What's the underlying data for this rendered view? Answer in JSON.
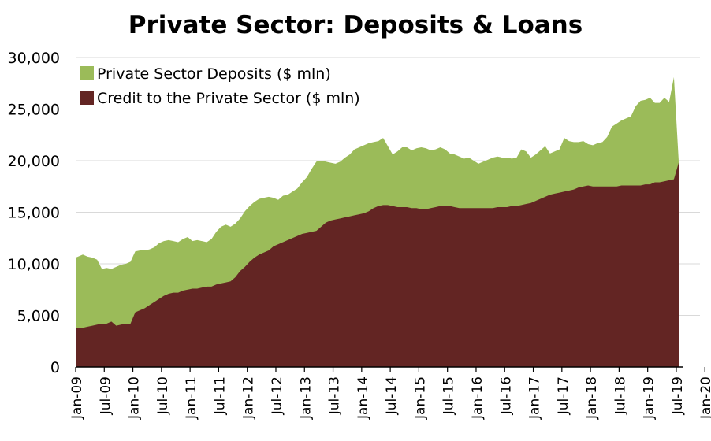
{
  "chart_data": {
    "type": "area",
    "title": "Private Sector: Deposits & Loans",
    "xlabel": "",
    "ylabel": "",
    "ylim": [
      0,
      30000
    ],
    "yticks": [
      "0",
      "5,000",
      "10,000",
      "15,000",
      "20,000",
      "25,000",
      "30,000"
    ],
    "ytick_values": [
      0,
      5000,
      10000,
      15000,
      20000,
      25000,
      30000
    ],
    "x_start": "Jan-09",
    "x_ticks": [
      "Jan-09",
      "Jul-09",
      "Jan-10",
      "Jul-10",
      "Jan-11",
      "Jul-11",
      "Jan-12",
      "Jul-12",
      "Jan-13",
      "Jul-13",
      "Jan-14",
      "Jul-14",
      "Jan-15",
      "Jul-15",
      "Jan-16",
      "Jul-16",
      "Jan-17",
      "Jul-17",
      "Jan-18",
      "Jul-18",
      "Jan-19",
      "Jul-19",
      "Jan-20"
    ],
    "grid": "horizontal",
    "legend_position": "top-left",
    "series": [
      {
        "name": "Private Sector Deposits ($ mln)",
        "color": "#9BBB59",
        "values": [
          10600,
          10900,
          10700,
          10600,
          10400,
          9500,
          9600,
          9500,
          9700,
          9900,
          10000,
          10200,
          11200,
          11300,
          11300,
          11400,
          11600,
          12000,
          12200,
          12300,
          12200,
          12100,
          12400,
          12600,
          12200,
          12300,
          12200,
          12100,
          12400,
          13100,
          13600,
          13800,
          13600,
          13900,
          14400,
          15100,
          15600,
          16000,
          16300,
          16400,
          16500,
          16400,
          16200,
          16600,
          16700,
          17000,
          17300,
          17900,
          18400,
          19200,
          19900,
          20000,
          19900,
          19800,
          19700,
          19900,
          20300,
          20600,
          21100,
          21300,
          21500,
          21700,
          21800,
          21900,
          22200,
          21400,
          20600,
          20900,
          21300,
          21300,
          21000,
          21200,
          21300,
          21200,
          21000,
          21100,
          21300,
          21100,
          20700,
          20600,
          20400,
          20200,
          20300,
          20000,
          19700,
          19900,
          20100,
          20300,
          20400,
          20300,
          20300,
          20200,
          20300,
          21100,
          20900,
          20300,
          20600,
          21000,
          21400,
          20700,
          20900,
          21100,
          22200,
          21900,
          21800,
          21800,
          21900,
          21600,
          21500,
          21700,
          21800,
          22300,
          23300,
          23600,
          23900,
          24100,
          24300,
          25300,
          25800,
          25900,
          26100,
          25600,
          25600,
          26100,
          25700,
          28100,
          20000
        ]
      },
      {
        "name": "Credit to the Private Sector ($ mln)",
        "color": "#632523",
        "values": [
          3800,
          3800,
          3900,
          4000,
          4100,
          4200,
          4200,
          4400,
          4000,
          4100,
          4200,
          4200,
          5300,
          5500,
          5700,
          6000,
          6300,
          6600,
          6900,
          7100,
          7200,
          7200,
          7400,
          7500,
          7600,
          7600,
          7700,
          7800,
          7800,
          8000,
          8100,
          8200,
          8300,
          8700,
          9300,
          9700,
          10200,
          10600,
          10900,
          11100,
          11300,
          11700,
          11900,
          12100,
          12300,
          12500,
          12700,
          12900,
          13000,
          13100,
          13200,
          13600,
          14000,
          14200,
          14300,
          14400,
          14500,
          14600,
          14700,
          14800,
          14900,
          15100,
          15400,
          15600,
          15700,
          15700,
          15600,
          15500,
          15500,
          15500,
          15400,
          15400,
          15300,
          15300,
          15400,
          15500,
          15600,
          15600,
          15600,
          15500,
          15400,
          15400,
          15400,
          15400,
          15400,
          15400,
          15400,
          15400,
          15500,
          15500,
          15500,
          15600,
          15600,
          15700,
          15800,
          15900,
          16100,
          16300,
          16500,
          16700,
          16800,
          16900,
          17000,
          17100,
          17200,
          17400,
          17500,
          17600,
          17500,
          17500,
          17500,
          17500,
          17500,
          17500,
          17600,
          17600,
          17600,
          17600,
          17600,
          17700,
          17700,
          17900,
          17900,
          18000,
          18100,
          18200,
          19800
        ]
      }
    ]
  }
}
